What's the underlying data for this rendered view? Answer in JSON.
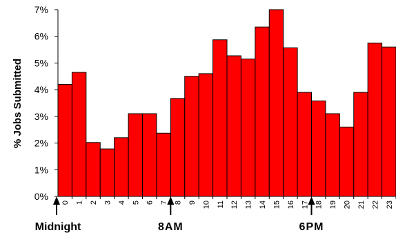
{
  "chart_data": {
    "type": "bar",
    "title": "",
    "xlabel": "",
    "ylabel": "% Jobs Submitted",
    "ylim": [
      0,
      7
    ],
    "y_ticks": [
      "0%",
      "1%",
      "2%",
      "3%",
      "4%",
      "5%",
      "6%",
      "7%"
    ],
    "categories": [
      "0",
      "1",
      "2",
      "3",
      "4",
      "5",
      "6",
      "7",
      "8",
      "9",
      "10",
      "11",
      "12",
      "13",
      "14",
      "15",
      "16",
      "17",
      "18",
      "19",
      "20",
      "21",
      "22",
      "23"
    ],
    "values": [
      4.2,
      4.65,
      2.02,
      1.78,
      2.2,
      3.1,
      3.1,
      2.37,
      3.67,
      4.5,
      4.6,
      5.87,
      5.27,
      5.15,
      6.35,
      7.0,
      5.57,
      3.9,
      3.58,
      3.1,
      2.6,
      3.9,
      5.75,
      5.6
    ],
    "bar_color": "#ff0000",
    "grid": false,
    "legend": "none",
    "annotations": [
      {
        "label": "Midnight",
        "hour": 0
      },
      {
        "label": "8AM",
        "hour": 8
      },
      {
        "label": "6PM",
        "hour": 18
      }
    ]
  }
}
